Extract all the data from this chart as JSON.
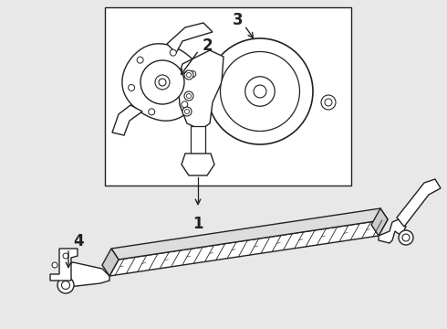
{
  "bg_color": "#e8e8e8",
  "line_color": "#222222",
  "box_color": "#ffffff",
  "label_1": "1",
  "label_2": "2",
  "label_3": "3",
  "label_4": "4",
  "label_fontsize": 12,
  "fig_width": 4.9,
  "fig_height": 3.6,
  "dpi": 100
}
